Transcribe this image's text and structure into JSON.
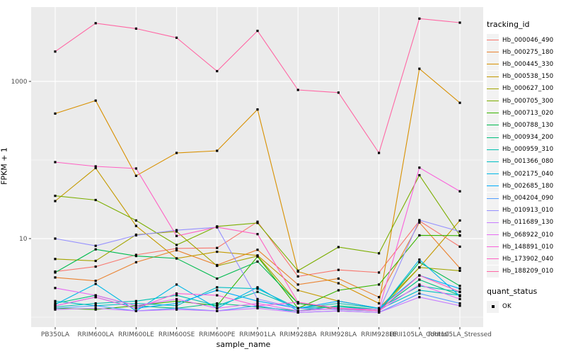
{
  "window": {
    "background": "#FFFFFF",
    "panel_background": "#EBEBEB",
    "grid_color": "#FFFFFF",
    "axis_text_color": "#4D4D4D",
    "tick_color": "#333333",
    "legend_key_background": "#F2F2F2"
  },
  "chart_data": {
    "type": "line",
    "title": "",
    "xlabel": "sample_name",
    "ylabel": "FPKM + 1",
    "y_scale": "log10",
    "y_tick_labels": [
      "10",
      "1000"
    ],
    "y_tick_values": [
      10,
      1000
    ],
    "y_minor_values": [
      1,
      100
    ],
    "ylim": [
      0.78,
      8500
    ],
    "grid": "on",
    "legend_position": "right",
    "legend_title": "tracking_id",
    "point_legend": {
      "title": "quant_status",
      "label": "OK",
      "marker": "black-square"
    },
    "marker": "black-square",
    "categories": [
      "PB350LA",
      "RRIM600LA",
      "RRIM600LE",
      "RRIM600SE",
      "RRIM600PE",
      "RRIM901LA",
      "RRIM928BA",
      "RRIM928LA",
      "RRIM928LE",
      "RRII105LA_Control",
      "RRII105LA_Stressed"
    ],
    "series": [
      {
        "name": "Hb_000046_490",
        "color": "#F8766D",
        "values": [
          3.8,
          4.4,
          6.2,
          7.5,
          7.6,
          16.4,
          3.3,
          4.0,
          3.7,
          16.8,
          7.9
        ]
      },
      {
        "name": "Hb_000275_180",
        "color": "#EA8331",
        "values": [
          3.2,
          2.9,
          5.0,
          7.1,
          4.6,
          7.2,
          2.6,
          3.1,
          1.8,
          16.0,
          4.2
        ]
      },
      {
        "name": "Hb_000445_330",
        "color": "#D89000",
        "values": [
          390,
          570,
          63,
          123,
          131,
          440,
          3.8,
          2.7,
          1.5,
          1450,
          535
        ]
      },
      {
        "name": "Hb_000538_150",
        "color": "#C49A00",
        "values": [
          30,
          79,
          14.5,
          5.6,
          6.8,
          6.1,
          2.2,
          1.6,
          1.3,
          4.3,
          17
        ]
      },
      {
        "name": "Hb_000627_100",
        "color": "#A3A500",
        "values": [
          5.5,
          5.2,
          11.2,
          12.3,
          4.5,
          6.0,
          1.5,
          1.25,
          1.2,
          4.3,
          3.9
        ]
      },
      {
        "name": "Hb_000705_300",
        "color": "#7CAE00",
        "values": [
          35,
          31,
          17,
          8.3,
          14.3,
          15.8,
          3.9,
          7.8,
          6.5,
          64,
          11
        ]
      },
      {
        "name": "Hb_000713_020",
        "color": "#39B600",
        "values": [
          1.3,
          1.25,
          1.4,
          1.6,
          1.4,
          5.9,
          1.3,
          2.2,
          2.6,
          11,
          10.9
        ]
      },
      {
        "name": "Hb_000788_130",
        "color": "#00BB4E",
        "values": [
          3.7,
          7.3,
          6.0,
          5.6,
          3.1,
          5.1,
          1.5,
          1.3,
          1.2,
          5.0,
          2.5
        ]
      },
      {
        "name": "Hb_000934_200",
        "color": "#00BF7D",
        "values": [
          1.5,
          1.9,
          1.4,
          1.3,
          1.5,
          1.35,
          1.2,
          1.4,
          1.25,
          3.0,
          1.9
        ]
      },
      {
        "name": "Hb_000959_310",
        "color": "#00C0AF",
        "values": [
          1.35,
          1.5,
          1.6,
          1.9,
          1.4,
          2.1,
          1.3,
          1.5,
          1.3,
          2.5,
          2.1
        ]
      },
      {
        "name": "Hb_001366_080",
        "color": "#00BFC4",
        "values": [
          1.6,
          1.4,
          1.5,
          1.4,
          2.4,
          2.3,
          1.3,
          1.35,
          1.25,
          2.2,
          1.9
        ]
      },
      {
        "name": "Hb_002175_040",
        "color": "#00B8E7",
        "values": [
          1.45,
          2.65,
          1.2,
          2.6,
          1.3,
          2.4,
          1.2,
          1.3,
          1.2,
          5.4,
          1.85
        ]
      },
      {
        "name": "Hb_002685_180",
        "color": "#00ACFC",
        "values": [
          1.4,
          1.8,
          1.3,
          1.5,
          2.2,
          1.6,
          1.3,
          1.6,
          1.3,
          3.4,
          2.3
        ]
      },
      {
        "name": "Hb_004204_090",
        "color": "#529EFF",
        "values": [
          1.3,
          1.4,
          1.2,
          1.3,
          1.2,
          1.4,
          1.15,
          1.2,
          1.15,
          2.0,
          1.5
        ]
      },
      {
        "name": "Hb_010913_010",
        "color": "#9590FF",
        "values": [
          10.0,
          8.1,
          11.0,
          12.8,
          13.9,
          1.7,
          1.3,
          1.25,
          1.2,
          17.2,
          12.3
        ]
      },
      {
        "name": "Hb_011689_130",
        "color": "#C77CFF",
        "values": [
          1.25,
          1.3,
          1.2,
          1.25,
          1.2,
          1.3,
          1.15,
          1.2,
          1.15,
          1.8,
          1.4
        ]
      },
      {
        "name": "Hb_068922_010",
        "color": "#E76BF3",
        "values": [
          2.35,
          1.9,
          1.4,
          1.7,
          1.3,
          1.5,
          1.2,
          1.3,
          1.2,
          2.6,
          1.7
        ]
      },
      {
        "name": "Hb_148891_010",
        "color": "#FA62DB",
        "values": [
          1.4,
          1.8,
          1.3,
          2.0,
          1.9,
          1.4,
          1.55,
          1.3,
          1.25,
          80,
          40
        ]
      },
      {
        "name": "Hb_173902_040",
        "color": "#FF61C3",
        "values": [
          94,
          83,
          78,
          10.8,
          14.0,
          11.4,
          1.55,
          1.3,
          1.2,
          3.4,
          2.1
        ]
      },
      {
        "name": "Hb_188209_010",
        "color": "#FF67A4",
        "values": [
          2400,
          5500,
          4700,
          3600,
          1350,
          4400,
          780,
          720,
          123,
          6300,
          5600
        ]
      }
    ]
  }
}
